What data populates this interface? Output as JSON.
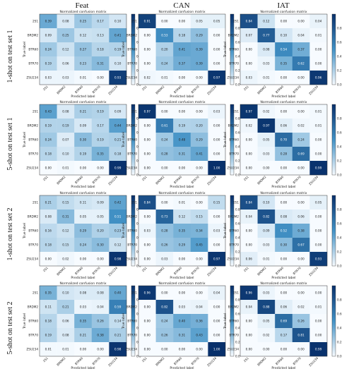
{
  "figure": {
    "columns": [
      "Feat",
      "CAN",
      "IAT"
    ],
    "rows": [
      "1-shot on test set 1",
      "5-shot on test set 1",
      "1-shot on test set 2",
      "5-shot on test set 2"
    ]
  },
  "panel_labels": {
    "title": "Normalized confusion matrix",
    "xlabel": "Predicted label",
    "ylabel": "True label",
    "classes": [
      "2S1",
      "BRDM2",
      "BTR60",
      "BTR70",
      "ZSU234"
    ],
    "colorbar_ticks": [
      "0.8",
      "0.6",
      "0.4",
      "0.2",
      "0.0"
    ]
  },
  "colors": {
    "low": "#f7fbff",
    "high": "#08306b"
  },
  "chart_data": [
    {
      "type": "heatmap",
      "row": 0,
      "col": 0,
      "matrix": [
        [
          0.39,
          0.08,
          0.25,
          0.17,
          0.1
        ],
        [
          0.09,
          0.25,
          0.12,
          0.13,
          0.41
        ],
        [
          0.24,
          0.12,
          0.27,
          0.18,
          0.19
        ],
        [
          0.19,
          0.06,
          0.23,
          0.31,
          0.1
        ],
        [
          0.03,
          0.03,
          0.01,
          0.0,
          0.93
        ]
      ]
    },
    {
      "type": "heatmap",
      "row": 0,
      "col": 1,
      "matrix": [
        [
          0.91,
          0.0,
          0.0,
          0.05,
          0.05
        ],
        [
          0.0,
          0.53,
          0.18,
          0.29,
          0.0
        ],
        [
          0.0,
          0.2,
          0.41,
          0.39,
          0.0
        ],
        [
          0.0,
          0.24,
          0.37,
          0.39,
          0.0
        ],
        [
          0.02,
          0.01,
          0.0,
          0.0,
          0.97
        ]
      ]
    },
    {
      "type": "heatmap",
      "row": 0,
      "col": 2,
      "matrix": [
        [
          0.84,
          0.12,
          0.0,
          0.0,
          0.04
        ],
        [
          0.07,
          0.77,
          0.1,
          0.04,
          0.01
        ],
        [
          0.0,
          0.08,
          0.54,
          0.37,
          0.0
        ],
        [
          0.0,
          0.03,
          0.35,
          0.62,
          0.0
        ],
        [
          0.03,
          0.01,
          0.0,
          0.0,
          0.96
        ]
      ]
    },
    {
      "type": "heatmap",
      "row": 1,
      "col": 0,
      "matrix": [
        [
          0.43,
          0.08,
          0.21,
          0.19,
          0.09
        ],
        [
          0.19,
          0.19,
          0.09,
          0.17,
          0.44
        ],
        [
          0.24,
          0.07,
          0.3,
          0.19,
          0.21
        ],
        [
          0.18,
          0.1,
          0.19,
          0.35,
          0.18
        ],
        [
          0.0,
          0.01,
          0.0,
          0.0,
          0.99
        ]
      ]
    },
    {
      "type": "heatmap",
      "row": 1,
      "col": 1,
      "matrix": [
        [
          0.97,
          0.0,
          0.0,
          0.0,
          0.03
        ],
        [
          0.0,
          0.61,
          0.19,
          0.2,
          0.0
        ],
        [
          0.0,
          0.24,
          0.48,
          0.29,
          0.0
        ],
        [
          0.0,
          0.28,
          0.31,
          0.41,
          0.0
        ],
        [
          0.0,
          0.0,
          0.0,
          0.0,
          1.0
        ]
      ]
    },
    {
      "type": "heatmap",
      "row": 1,
      "col": 2,
      "matrix": [
        [
          0.97,
          0.02,
          0.0,
          0.0,
          0.01
        ],
        [
          0.02,
          0.97,
          0.06,
          0.02,
          0.01
        ],
        [
          0.0,
          0.05,
          0.7,
          0.24,
          0.0
        ],
        [
          0.0,
          0.03,
          0.28,
          0.69,
          0.0
        ],
        [
          0.0,
          0.0,
          0.0,
          0.0,
          0.99
        ]
      ]
    },
    {
      "type": "heatmap",
      "row": 2,
      "col": 0,
      "matrix": [
        [
          0.21,
          0.15,
          0.11,
          0.09,
          0.42
        ],
        [
          0.08,
          0.31,
          0.05,
          0.05,
          0.51
        ],
        [
          0.16,
          0.12,
          0.29,
          0.2,
          0.23
        ],
        [
          0.18,
          0.15,
          0.24,
          0.3,
          0.12
        ],
        [
          0.0,
          0.02,
          0.0,
          0.0,
          0.98
        ]
      ]
    },
    {
      "type": "heatmap",
      "row": 2,
      "col": 1,
      "matrix": [
        [
          0.84,
          0.0,
          0.01,
          0.0,
          0.15
        ],
        [
          0.0,
          0.73,
          0.12,
          0.15,
          0.0
        ],
        [
          0.03,
          0.28,
          0.35,
          0.34,
          0.03
        ],
        [
          0.0,
          0.26,
          0.29,
          0.45,
          0.0
        ],
        [
          0.0,
          0.03,
          0.0,
          0.0,
          0.97
        ]
      ]
    },
    {
      "type": "heatmap",
      "row": 2,
      "col": 2,
      "matrix": [
        [
          0.84,
          0.1,
          0.0,
          0.0,
          0.05
        ],
        [
          0.04,
          0.82,
          0.08,
          0.06,
          0.0
        ],
        [
          0.0,
          0.09,
          0.52,
          0.38,
          0.0
        ],
        [
          0.0,
          0.03,
          0.3,
          0.67,
          0.0
        ],
        [
          0.06,
          0.01,
          0.0,
          0.0,
          0.93
        ]
      ]
    },
    {
      "type": "heatmap",
      "row": 3,
      "col": 0,
      "matrix": [
        [
          0.35,
          0.1,
          0.08,
          0.08,
          0.4
        ],
        [
          0.11,
          0.21,
          0.03,
          0.04,
          0.59
        ],
        [
          0.18,
          0.06,
          0.35,
          0.26,
          0.14
        ],
        [
          0.19,
          0.08,
          0.21,
          0.38,
          0.21
        ],
        [
          0.01,
          0.01,
          0.0,
          0.0,
          0.98
        ]
      ]
    },
    {
      "type": "heatmap",
      "row": 3,
      "col": 1,
      "matrix": [
        [
          0.96,
          0.0,
          0.0,
          0.0,
          0.04
        ],
        [
          0.0,
          0.82,
          0.03,
          0.04,
          0.0
        ],
        [
          0.0,
          0.24,
          0.4,
          0.36,
          0.0
        ],
        [
          0.0,
          0.26,
          0.31,
          0.43,
          0.0
        ],
        [
          0.0,
          0.0,
          0.0,
          0.0,
          1.0
        ]
      ]
    },
    {
      "type": "heatmap",
      "row": 3,
      "col": 2,
      "matrix": [
        [
          0.96,
          0.03,
          0.0,
          0.0,
          0.0
        ],
        [
          0.04,
          0.88,
          0.06,
          0.02,
          0.01
        ],
        [
          0.0,
          0.05,
          0.69,
          0.26,
          0.0
        ],
        [
          0.0,
          0.02,
          0.17,
          0.81,
          0.0
        ],
        [
          0.0,
          0.0,
          0.0,
          0.0,
          0.99
        ]
      ]
    }
  ]
}
